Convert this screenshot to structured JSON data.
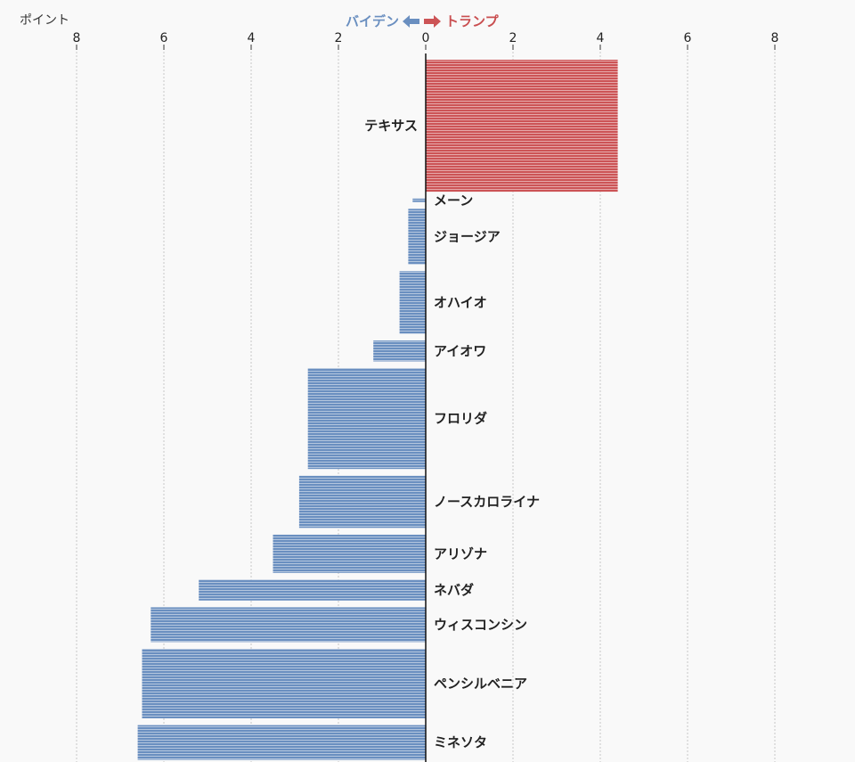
{
  "unit_label": "ポイント",
  "legend": {
    "left_label": "バイデン",
    "right_label": "トランプ"
  },
  "colors": {
    "biden": "#6a8fc0",
    "trump": "#cc5456"
  },
  "chart_data": {
    "type": "bar",
    "orientation": "horizontal",
    "xlabel": "ポイント",
    "xlim": [
      -8,
      8
    ],
    "xticks": [
      "8",
      "6",
      "4",
      "2",
      "0",
      "2",
      "4",
      "6",
      "8"
    ],
    "tick_values": [
      -8,
      -6,
      -4,
      -2,
      0,
      2,
      4,
      6,
      8
    ],
    "grid": true,
    "categories": [
      "テキサス",
      "メーン",
      "ジョージア",
      "オハイオ",
      "アイオワ",
      "フロリダ",
      "ノースカロライナ",
      "アリゾナ",
      "ネバダ",
      "ウィスコンシン",
      "ペンシルベニア",
      "ミネソタ"
    ],
    "values": [
      4.4,
      -0.3,
      -0.4,
      -0.6,
      -1.2,
      -2.7,
      -2.9,
      -3.5,
      -5.2,
      -6.3,
      -6.5,
      -6.6
    ],
    "bar_weights": [
      38,
      1,
      16,
      18,
      6,
      29,
      15,
      11,
      6,
      10,
      20,
      10
    ]
  }
}
